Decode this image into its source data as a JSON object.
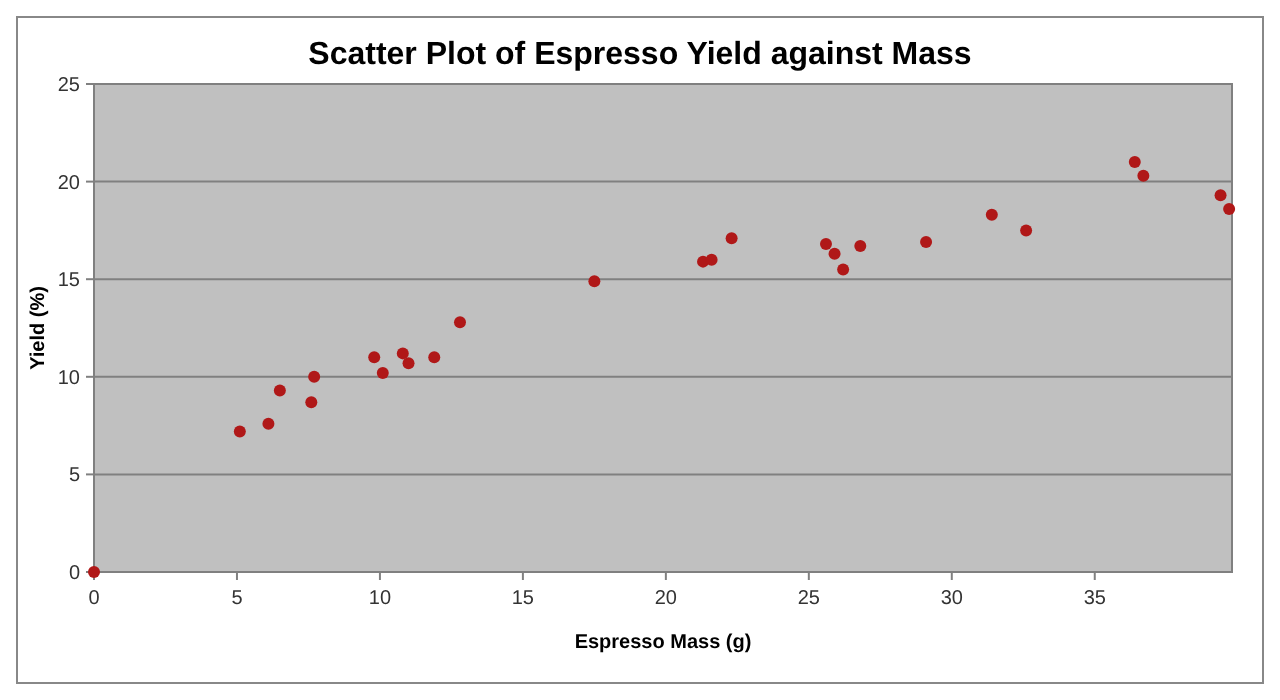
{
  "chart_data": {
    "type": "scatter",
    "title": "Scatter Plot of Espresso Yield against Mass",
    "xlabel": "Espresso Mass (g)",
    "ylabel": "Yield (%)",
    "xlim": [
      0,
      39.8
    ],
    "xticks": [
      0,
      5,
      10,
      15,
      20,
      25,
      30,
      35
    ],
    "ylim": [
      0,
      25
    ],
    "yticks": [
      0,
      5,
      10,
      15,
      20,
      25
    ],
    "grid": "y",
    "marker": "circle",
    "series": [
      {
        "color": "#b01818",
        "x": [
          0,
          5.1,
          6.1,
          6.5,
          7.6,
          7.7,
          9.8,
          10.1,
          10.8,
          11.0,
          11.9,
          12.8,
          17.5,
          21.3,
          21.6,
          22.3,
          25.6,
          25.9,
          26.2,
          26.8,
          29.1,
          31.4,
          32.6,
          36.4,
          36.7,
          39.4,
          39.7
        ],
        "values": [
          0,
          7.2,
          7.6,
          9.3,
          8.7,
          10.0,
          11.0,
          10.2,
          11.2,
          10.7,
          11.0,
          12.8,
          14.9,
          15.9,
          16.0,
          17.1,
          16.8,
          16.3,
          15.5,
          16.7,
          16.9,
          18.3,
          17.5,
          21.0,
          20.3,
          19.3,
          18.6
        ]
      }
    ]
  }
}
